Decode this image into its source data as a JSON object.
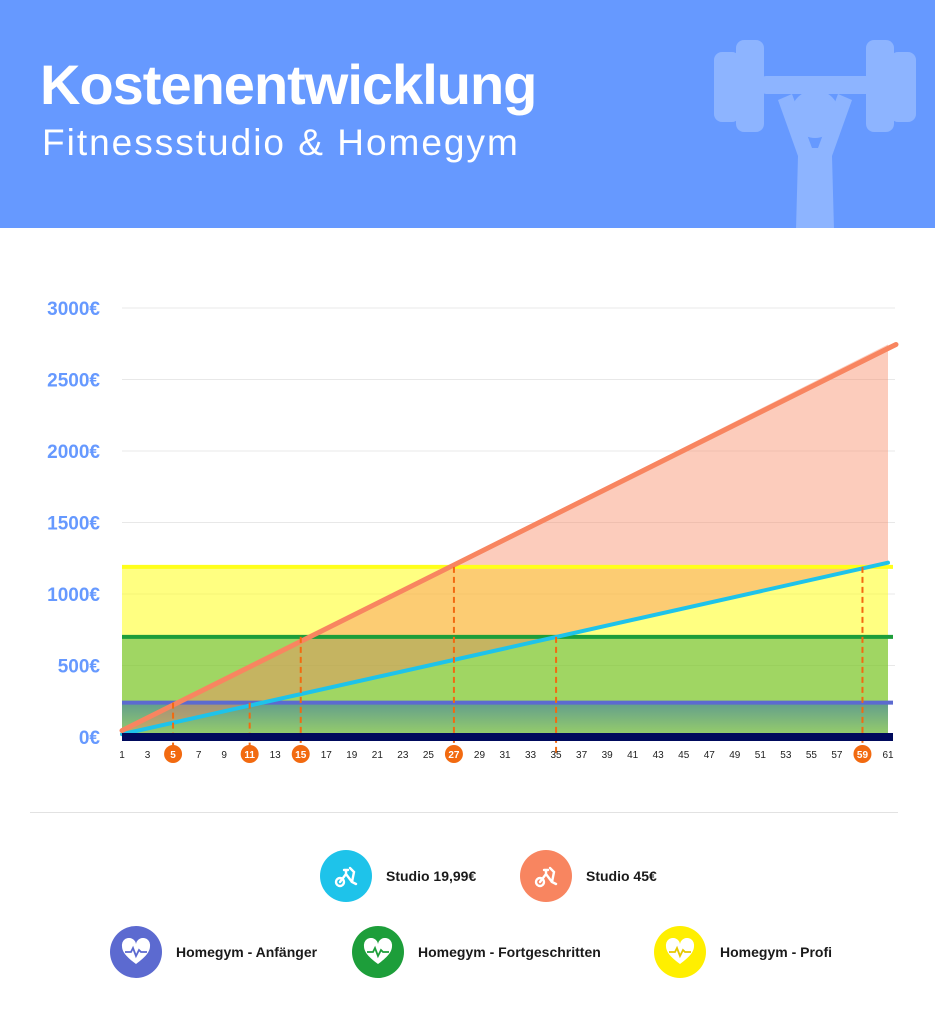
{
  "header": {
    "title": "Kostenentwicklung",
    "subtitle": "Fitnessstudio & Homegym",
    "icon": "fitness-person-dumbbell-icon",
    "background": "#6699ff"
  },
  "chart_data": {
    "type": "line",
    "x": [
      1,
      3,
      5,
      7,
      9,
      11,
      13,
      15,
      17,
      19,
      21,
      23,
      25,
      27,
      29,
      31,
      33,
      35,
      37,
      39,
      41,
      43,
      45,
      47,
      49,
      51,
      53,
      55,
      57,
      59,
      61
    ],
    "x_tick_labels": [
      "1",
      "3",
      "5",
      "7",
      "9",
      "11",
      "13",
      "15",
      "17",
      "19",
      "21",
      "23",
      "25",
      "27",
      "29",
      "31",
      "33",
      "35",
      "37",
      "39",
      "41",
      "43",
      "45",
      "47",
      "49",
      "51",
      "53",
      "55",
      "57",
      "59",
      "61"
    ],
    "highlighted_x": [
      5,
      11,
      15,
      27,
      59
    ],
    "y_tick_labels": [
      "0€",
      "500€",
      "1000€",
      "1500€",
      "2000€",
      "2500€",
      "3000€"
    ],
    "y_ticks": [
      0,
      500,
      1000,
      1500,
      2000,
      2500,
      3000
    ],
    "ylim": [
      0,
      3000
    ],
    "xlim": [
      1,
      61
    ],
    "grid": true,
    "series": [
      {
        "name": "Studio 19,99€",
        "kind": "line",
        "x": [
          1,
          61
        ],
        "y": [
          20,
          1219
        ],
        "color": "#1ec3ea"
      },
      {
        "name": "Studio 45€",
        "kind": "line",
        "x": [
          1,
          61
        ],
        "y": [
          45,
          2745
        ],
        "color": "#f88560"
      },
      {
        "name": "Homegym - Anfänger",
        "kind": "flat",
        "value": 240,
        "color": "#5c6ad0"
      },
      {
        "name": "Homegym - Fortgeschritten",
        "kind": "flat",
        "value": 700,
        "color": "#1d9e3a"
      },
      {
        "name": "Homegym - Profi",
        "kind": "flat",
        "value": 1190,
        "color": "#ffff1a"
      }
    ],
    "intersections": [
      {
        "x": 5,
        "y": 240
      },
      {
        "x": 11,
        "y": 240
      },
      {
        "x": 15,
        "y": 700
      },
      {
        "x": 27,
        "y": 1190
      },
      {
        "x": 35,
        "y": 700
      },
      {
        "x": 59,
        "y": 1190
      }
    ],
    "colors": {
      "axis_label": "#6699ff",
      "highlight": "#f26a10",
      "baseline": "#000a5c",
      "grid": "#e8e8e8"
    },
    "legend_position": "bottom"
  },
  "legend": {
    "items": [
      {
        "label": "Studio 19,99€",
        "color": "#1ec3ea",
        "icon": "exercise-bike-icon"
      },
      {
        "label": "Studio 45€",
        "color": "#f88560",
        "icon": "exercise-bike-icon"
      },
      {
        "label": "Homegym - Anfänger",
        "color": "#5c6ad0",
        "icon": "heartbeat-icon"
      },
      {
        "label": "Homegym - Fortgeschritten",
        "color": "#1d9e3a",
        "icon": "heartbeat-icon"
      },
      {
        "label": "Homegym - Profi",
        "color": "#ffef00",
        "icon": "heartbeat-icon"
      }
    ]
  }
}
